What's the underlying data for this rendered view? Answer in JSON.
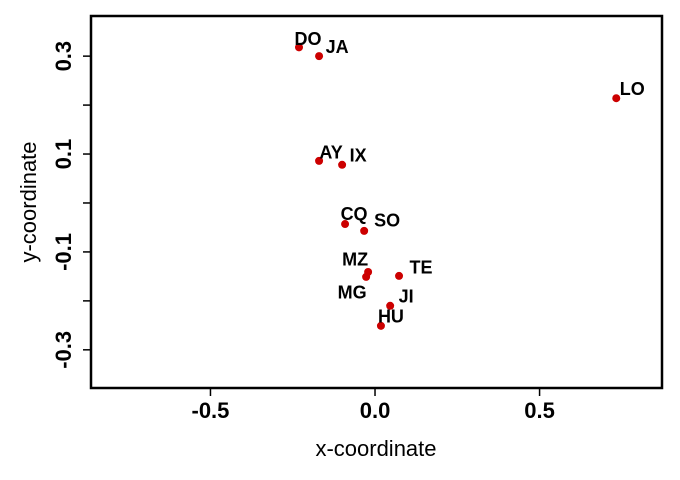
{
  "chart_data": {
    "type": "scatter",
    "xlabel": "x-coordinate",
    "ylabel": "y-coordinate",
    "labels": [
      "DO",
      "JA",
      "LO",
      "AY",
      "IX",
      "CQ",
      "SO",
      "MZ",
      "MG",
      "TE",
      "JI",
      "HU"
    ],
    "x": [
      -0.231,
      -0.17,
      0.733,
      -0.17,
      -0.1,
      -0.091,
      -0.033,
      -0.021,
      -0.027,
      0.073,
      0.046,
      0.018
    ],
    "values": [
      0.318,
      0.3,
      0.214,
      0.086,
      0.078,
      -0.043,
      -0.057,
      -0.141,
      -0.151,
      -0.149,
      -0.21,
      -0.251
    ],
    "color": "#cc0000",
    "xlim": [
      -0.863,
      0.872
    ],
    "ylim": [
      -0.378,
      0.382
    ],
    "xticks": [
      -0.5,
      {
        "value": 0,
        "label": "0.0"
      },
      0.5
    ],
    "yticks": [
      -0.3,
      -0.1,
      0.1,
      0.3
    ],
    "yminor": [
      -0.2,
      0,
      0.2
    ]
  }
}
